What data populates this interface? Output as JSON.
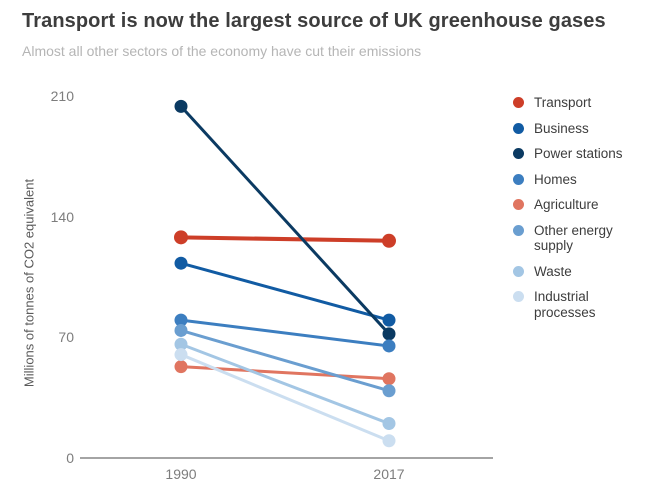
{
  "header": {
    "title": "Transport is now the largest source of UK greenhouse gases",
    "subtitle": "Almost all other sectors of the economy have cut their emissions"
  },
  "chart_data": {
    "type": "line",
    "variant": "slope",
    "title": "Transport is now the largest source of UK greenhouse gases",
    "subtitle": "Almost all other sectors of the economy have cut their emissions",
    "categories": [
      "1990",
      "2017"
    ],
    "series": [
      {
        "name": "Transport",
        "color": "#cd3e28",
        "values": [
          128,
          126
        ]
      },
      {
        "name": "Business",
        "color": "#115ba3",
        "values": [
          113,
          80
        ]
      },
      {
        "name": "Power stations",
        "color": "#0b3a62",
        "values": [
          204,
          72
        ]
      },
      {
        "name": "Homes",
        "color": "#3c7ec0",
        "values": [
          80,
          65
        ]
      },
      {
        "name": "Agriculture",
        "color": "#e07560",
        "values": [
          53,
          46
        ]
      },
      {
        "name": "Other energy supply",
        "color": "#6a9ed0",
        "values": [
          74,
          39
        ]
      },
      {
        "name": "Waste",
        "color": "#a3c6e4",
        "values": [
          66,
          20
        ]
      },
      {
        "name": "Industrial processes",
        "color": "#cbdef0",
        "values": [
          60,
          10
        ]
      }
    ],
    "xlabel": "",
    "ylabel": "Millions of tonnes of CO2 equivalent",
    "ylim": [
      0,
      210
    ],
    "y_ticks": [
      0,
      70,
      140,
      210
    ],
    "grid": false,
    "legend_position": "right"
  }
}
